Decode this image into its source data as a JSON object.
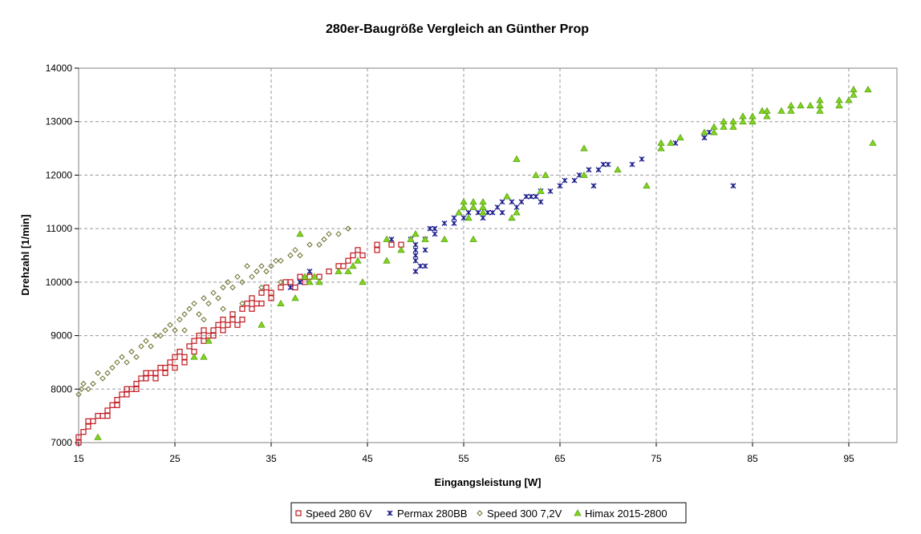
{
  "chart_data": {
    "type": "scatter",
    "title": "280er-Baugröße Vergleich an Günther Prop",
    "xlabel": "Eingangsleistung [W]",
    "ylabel": "Drehzahl [1/min]",
    "xlim": [
      15,
      100
    ],
    "ylim": [
      7000,
      14000
    ],
    "xticks": [
      15,
      25,
      35,
      45,
      55,
      65,
      75,
      85,
      95
    ],
    "yticks": [
      7000,
      8000,
      9000,
      10000,
      11000,
      12000,
      13000,
      14000
    ],
    "grid": true,
    "legend_position": "bottom",
    "series": [
      {
        "name": "Speed 280 6V",
        "marker": "square",
        "color": "#c0141c",
        "points": [
          [
            15,
            7000
          ],
          [
            15,
            7100
          ],
          [
            15.5,
            7200
          ],
          [
            16,
            7300
          ],
          [
            16,
            7400
          ],
          [
            16.5,
            7400
          ],
          [
            17,
            7500
          ],
          [
            17.5,
            7500
          ],
          [
            18,
            7500
          ],
          [
            18,
            7600
          ],
          [
            18.5,
            7700
          ],
          [
            19,
            7700
          ],
          [
            19,
            7800
          ],
          [
            19.5,
            7900
          ],
          [
            20,
            7900
          ],
          [
            20,
            8000
          ],
          [
            20.5,
            8000
          ],
          [
            21,
            8100
          ],
          [
            21,
            8000
          ],
          [
            21.5,
            8200
          ],
          [
            22,
            8200
          ],
          [
            22,
            8300
          ],
          [
            22.5,
            8300
          ],
          [
            23,
            8300
          ],
          [
            23,
            8200
          ],
          [
            23.5,
            8400
          ],
          [
            24,
            8300
          ],
          [
            24,
            8400
          ],
          [
            24.5,
            8500
          ],
          [
            25,
            8600
          ],
          [
            25,
            8400
          ],
          [
            25.5,
            8700
          ],
          [
            26,
            8500
          ],
          [
            26,
            8600
          ],
          [
            26.5,
            8800
          ],
          [
            27,
            8900
          ],
          [
            27,
            8700
          ],
          [
            27.5,
            9000
          ],
          [
            28,
            8900
          ],
          [
            28,
            9100
          ],
          [
            28.5,
            9000
          ],
          [
            29,
            9100
          ],
          [
            29,
            9000
          ],
          [
            29.5,
            9200
          ],
          [
            30,
            9100
          ],
          [
            30,
            9300
          ],
          [
            30.5,
            9200
          ],
          [
            31,
            9300
          ],
          [
            31,
            9400
          ],
          [
            31.5,
            9200
          ],
          [
            32,
            9500
          ],
          [
            32,
            9300
          ],
          [
            32.5,
            9600
          ],
          [
            33,
            9500
          ],
          [
            33,
            9700
          ],
          [
            33.5,
            9600
          ],
          [
            34,
            9800
          ],
          [
            34,
            9600
          ],
          [
            34.5,
            9900
          ],
          [
            35,
            9700
          ],
          [
            35,
            9800
          ],
          [
            36,
            9900
          ],
          [
            36.5,
            10000
          ],
          [
            37,
            10000
          ],
          [
            37.5,
            9900
          ],
          [
            38,
            10100
          ],
          [
            38.5,
            10000
          ],
          [
            39,
            10100
          ],
          [
            40,
            10100
          ],
          [
            41,
            10200
          ],
          [
            42,
            10300
          ],
          [
            42.5,
            10300
          ],
          [
            43,
            10400
          ],
          [
            43.5,
            10500
          ],
          [
            44,
            10600
          ],
          [
            44.5,
            10500
          ],
          [
            46,
            10700
          ],
          [
            46,
            10600
          ],
          [
            47.5,
            10700
          ],
          [
            48.5,
            10700
          ]
        ]
      },
      {
        "name": "Permax 280BB",
        "marker": "asterisk",
        "color": "#1a1a8c",
        "points": [
          [
            37,
            9900
          ],
          [
            38,
            10000
          ],
          [
            39,
            10200
          ],
          [
            47.5,
            10800
          ],
          [
            49.5,
            10800
          ],
          [
            50,
            10200
          ],
          [
            50,
            10400
          ],
          [
            50,
            10500
          ],
          [
            50,
            10600
          ],
          [
            50,
            10700
          ],
          [
            50.5,
            10300
          ],
          [
            51,
            10300
          ],
          [
            51,
            10600
          ],
          [
            51,
            10800
          ],
          [
            51.5,
            11000
          ],
          [
            52,
            10900
          ],
          [
            52,
            11000
          ],
          [
            53,
            11100
          ],
          [
            54,
            11200
          ],
          [
            54,
            11100
          ],
          [
            55,
            11200
          ],
          [
            55.5,
            11300
          ],
          [
            56.5,
            11300
          ],
          [
            57,
            11200
          ],
          [
            57.5,
            11300
          ],
          [
            58,
            11300
          ],
          [
            58.5,
            11400
          ],
          [
            59,
            11300
          ],
          [
            59,
            11500
          ],
          [
            60,
            11500
          ],
          [
            60.5,
            11400
          ],
          [
            61,
            11500
          ],
          [
            61.5,
            11600
          ],
          [
            62,
            11600
          ],
          [
            62.5,
            11600
          ],
          [
            63,
            11500
          ],
          [
            63,
            11700
          ],
          [
            64,
            11700
          ],
          [
            65,
            11800
          ],
          [
            65.5,
            11900
          ],
          [
            66.5,
            11900
          ],
          [
            67,
            12000
          ],
          [
            68,
            12100
          ],
          [
            68.5,
            11800
          ],
          [
            69,
            12100
          ],
          [
            69.5,
            12200
          ],
          [
            70,
            12200
          ],
          [
            72.5,
            12200
          ],
          [
            73.5,
            12300
          ],
          [
            77,
            12600
          ],
          [
            80,
            12700
          ],
          [
            80.5,
            12800
          ],
          [
            83,
            11800
          ]
        ]
      },
      {
        "name": "Speed 300 7,2V",
        "marker": "diamond",
        "color": "#6b6b2a",
        "points": [
          [
            15,
            7900
          ],
          [
            15.3,
            8000
          ],
          [
            15.5,
            8100
          ],
          [
            16,
            8000
          ],
          [
            16.5,
            8100
          ],
          [
            17,
            8300
          ],
          [
            17.5,
            8200
          ],
          [
            18,
            8300
          ],
          [
            18.5,
            8400
          ],
          [
            19,
            8500
          ],
          [
            19.5,
            8600
          ],
          [
            20,
            8500
          ],
          [
            20.5,
            8700
          ],
          [
            21,
            8600
          ],
          [
            21.5,
            8800
          ],
          [
            22,
            8900
          ],
          [
            22.5,
            8800
          ],
          [
            23,
            9000
          ],
          [
            23.5,
            9000
          ],
          [
            24,
            9100
          ],
          [
            24.5,
            9200
          ],
          [
            25,
            9100
          ],
          [
            25.5,
            9300
          ],
          [
            26,
            9400
          ],
          [
            26.5,
            9500
          ],
          [
            27,
            9600
          ],
          [
            27.5,
            9400
          ],
          [
            28,
            9700
          ],
          [
            28.5,
            9600
          ],
          [
            29,
            9800
          ],
          [
            29.5,
            9700
          ],
          [
            30,
            9900
          ],
          [
            30.5,
            10000
          ],
          [
            31,
            9900
          ],
          [
            31.5,
            10100
          ],
          [
            32,
            10000
          ],
          [
            32.5,
            10300
          ],
          [
            33,
            10100
          ],
          [
            33.5,
            10200
          ],
          [
            34,
            10300
          ],
          [
            34.5,
            10200
          ],
          [
            35,
            10300
          ],
          [
            35.5,
            10400
          ],
          [
            36,
            10400
          ],
          [
            37,
            10500
          ],
          [
            37.5,
            10600
          ],
          [
            38,
            10500
          ],
          [
            39,
            10700
          ],
          [
            40,
            10700
          ],
          [
            40.5,
            10800
          ],
          [
            41,
            10900
          ],
          [
            42,
            10900
          ],
          [
            43,
            11000
          ],
          [
            26,
            9100
          ],
          [
            28,
            9300
          ],
          [
            30,
            9500
          ],
          [
            32,
            9600
          ],
          [
            34,
            9900
          ],
          [
            36,
            10000
          ]
        ]
      },
      {
        "name": "Himax 2015-2800",
        "marker": "triangle",
        "color": "#7fd61e",
        "points": [
          [
            17,
            7100
          ],
          [
            27,
            8600
          ],
          [
            28,
            8600
          ],
          [
            28.5,
            8900
          ],
          [
            34,
            9200
          ],
          [
            36,
            9600
          ],
          [
            37.5,
            9700
          ],
          [
            38,
            10900
          ],
          [
            38.5,
            10100
          ],
          [
            39,
            10000
          ],
          [
            39.5,
            10100
          ],
          [
            40,
            10000
          ],
          [
            42,
            10200
          ],
          [
            43,
            10200
          ],
          [
            43.5,
            10300
          ],
          [
            44,
            10400
          ],
          [
            44.5,
            10000
          ],
          [
            47,
            10400
          ],
          [
            47,
            10800
          ],
          [
            48.5,
            10600
          ],
          [
            49.5,
            10800
          ],
          [
            50,
            10900
          ],
          [
            51,
            10800
          ],
          [
            53,
            10800
          ],
          [
            54.5,
            11300
          ],
          [
            55,
            11500
          ],
          [
            55,
            11400
          ],
          [
            55.5,
            11200
          ],
          [
            56,
            10800
          ],
          [
            56,
            11500
          ],
          [
            56,
            11400
          ],
          [
            57,
            11500
          ],
          [
            57,
            11400
          ],
          [
            57,
            11300
          ],
          [
            59.5,
            11600
          ],
          [
            60,
            11200
          ],
          [
            60.5,
            11300
          ],
          [
            60.5,
            12300
          ],
          [
            62.5,
            12000
          ],
          [
            63,
            11700
          ],
          [
            63.5,
            12000
          ],
          [
            67.5,
            12500
          ],
          [
            67.5,
            12000
          ],
          [
            71,
            12100
          ],
          [
            74,
            11800
          ],
          [
            75.5,
            12500
          ],
          [
            75.5,
            12600
          ],
          [
            76.5,
            12600
          ],
          [
            77.5,
            12700
          ],
          [
            80,
            12800
          ],
          [
            81,
            12800
          ],
          [
            81,
            12900
          ],
          [
            82,
            13000
          ],
          [
            82,
            12900
          ],
          [
            83,
            13000
          ],
          [
            83,
            12900
          ],
          [
            84,
            13100
          ],
          [
            84,
            13000
          ],
          [
            85,
            13100
          ],
          [
            85,
            13000
          ],
          [
            86,
            13200
          ],
          [
            86.5,
            13200
          ],
          [
            86.5,
            13100
          ],
          [
            88,
            13200
          ],
          [
            89,
            13300
          ],
          [
            89,
            13200
          ],
          [
            90,
            13300
          ],
          [
            91,
            13300
          ],
          [
            92,
            13400
          ],
          [
            92,
            13300
          ],
          [
            92,
            13200
          ],
          [
            94,
            13400
          ],
          [
            94,
            13300
          ],
          [
            95,
            13400
          ],
          [
            95.5,
            13600
          ],
          [
            95.5,
            13500
          ],
          [
            97,
            13600
          ],
          [
            97.5,
            12600
          ]
        ]
      }
    ]
  }
}
